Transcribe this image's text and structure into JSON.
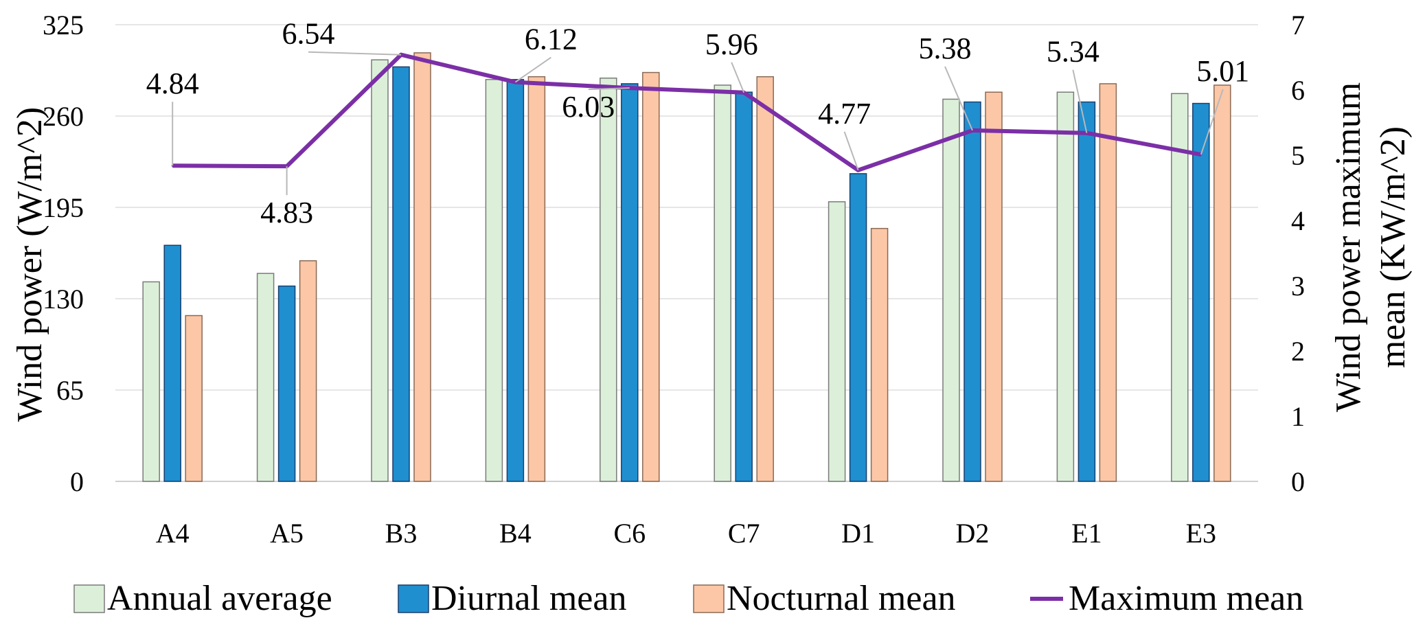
{
  "chart_data": {
    "type": "bar+line",
    "categories": [
      "A4",
      "A5",
      "B3",
      "B4",
      "C6",
      "C7",
      "D1",
      "D2",
      "E1",
      "E3"
    ],
    "series": [
      {
        "name": "Annual average",
        "type": "bar",
        "axis": "left",
        "color": "#dcf0d9",
        "values": [
          142,
          148,
          300,
          286,
          287,
          282,
          199,
          272,
          277,
          276
        ]
      },
      {
        "name": "Diurnal mean",
        "type": "bar",
        "axis": "left",
        "color": "#1f8fd0",
        "values": [
          168,
          139,
          295,
          286,
          283,
          277,
          219,
          270,
          270,
          269
        ]
      },
      {
        "name": "Nocturnal mean",
        "type": "bar",
        "axis": "left",
        "color": "#fbc7a7",
        "values": [
          118,
          157,
          305,
          288,
          291,
          288,
          180,
          277,
          283,
          282
        ]
      },
      {
        "name": "Maximum mean",
        "type": "line",
        "axis": "right",
        "color": "#7b2fa6",
        "values": [
          4.84,
          4.83,
          6.54,
          6.12,
          6.03,
          5.96,
          4.77,
          5.38,
          5.34,
          5.01
        ]
      }
    ],
    "line_labels": [
      "4.84",
      "4.83",
      "6.54",
      "6.12",
      "6.03",
      "5.96",
      "4.77",
      "5.38",
      "5.34",
      "5.01"
    ],
    "y_left": {
      "label": "Wind power (W/m^2)",
      "min": 0,
      "max": 325,
      "ticks": [
        "0",
        "65",
        "130",
        "195",
        "260",
        "325"
      ]
    },
    "y_right": {
      "label_line1": "Wind power maximum",
      "label_line2": "mean (KW/m^2)",
      "min": 0,
      "max": 7,
      "ticks": [
        "0",
        "1",
        "2",
        "3",
        "4",
        "5",
        "6",
        "7"
      ]
    },
    "grid": true,
    "legend_position": "bottom"
  }
}
